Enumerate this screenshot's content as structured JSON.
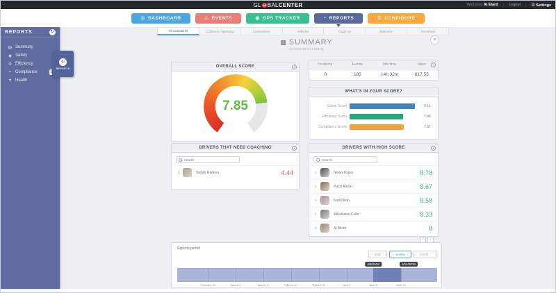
{
  "topbar": {
    "logo": {
      "part1": "GL",
      "part2": "BAL",
      "part3": "CENTER"
    },
    "welcome": "Welcome",
    "user": "Al Elard",
    "logout": "Logout",
    "settings": "Settings"
  },
  "nav": {
    "items": [
      {
        "label": "DASHBOARD",
        "icon": "dashboard-icon",
        "glyph": "◎",
        "color": "#4aa7e0",
        "active": false
      },
      {
        "label": "EVENTS",
        "icon": "warning-icon",
        "glyph": "⚠",
        "color": "#e87e76",
        "active": false
      },
      {
        "label": "GPS TRACKER",
        "icon": "location-pin-icon",
        "glyph": "◉",
        "color": "#38c08f",
        "active": false
      },
      {
        "label": "REPORTS",
        "icon": "report-chart-icon",
        "glyph": "◔",
        "color": "#5a689c",
        "active": true
      },
      {
        "label": "CONFIGURE",
        "icon": "wrench-icon",
        "glyph": "⚙",
        "color": "#f8a93e",
        "active": false
      }
    ]
  },
  "sidebar": {
    "title": "REPORTS",
    "toggle_glyph": "↻",
    "items": [
      {
        "label": "Summary",
        "icon": "summary-chart-icon",
        "glyph": "▤",
        "pinned": false
      },
      {
        "label": "Safety",
        "icon": "shield-icon",
        "glyph": "◆",
        "pinned": false
      },
      {
        "label": "Efficiency",
        "icon": "gear-icon",
        "glyph": "⚙",
        "pinned": false
      },
      {
        "label": "Compliance",
        "icon": "wave-icon",
        "glyph": "≈",
        "pinned": true
      },
      {
        "label": "Health",
        "icon": "heart-icon",
        "glyph": "♥",
        "pinned": false
      }
    ],
    "flyout": {
      "label": "REPORTS",
      "glyph": "↻"
    }
  },
  "tabs": [
    "All complaints",
    "Collisions, Speeding",
    "Connections",
    "Vehicles",
    "Trade Up",
    "Business",
    "Timesheet"
  ],
  "menu_button_glyph": "≡",
  "summary": {
    "title": "SUMMARY",
    "icon_glyph": "▦",
    "date_range": "(04/08/2018-04/14/2018)"
  },
  "overall": {
    "title": "OVERALL SCORE",
    "value": "7.85"
  },
  "metrics": {
    "headers": [
      "Incidents",
      "Events",
      "Idle time",
      "Miles"
    ],
    "values": [
      "0",
      "185",
      "14h 32m",
      "817.55"
    ]
  },
  "score_breakdown": {
    "title": "WHAT'S IN YOUR SCORE?",
    "max": 10,
    "bars": [
      {
        "label": "Safety Score",
        "value": 9.11,
        "display": "9.11",
        "color": "#3f86bf"
      },
      {
        "label": "Efficiency Score",
        "value": 7.46,
        "display": "7.46",
        "color": "#29a87e"
      },
      {
        "label": "Compliance Score",
        "value": 7.57,
        "display": "7.57",
        "color": "#f2a23b"
      }
    ]
  },
  "coaching": {
    "title": "DRIVERS THAT NEED COACHING",
    "search_placeholder": "Search",
    "rows": [
      {
        "rank": "1",
        "name": "Stefan Radevu",
        "score": "4.44",
        "avatar_color": "#a9a18c"
      }
    ]
  },
  "high_score": {
    "title": "DRIVERS WITH HIGH SCORE",
    "search_placeholder": "Search",
    "rows": [
      {
        "rank": "1",
        "name": "Nolan Ryass",
        "score": "8.78",
        "avatar_color": "#4a4a52"
      },
      {
        "rank": "2",
        "name": "Pavlo Resel",
        "score": "8.67",
        "avatar_color": "#8c6b52"
      },
      {
        "rank": "3",
        "name": "Karli Dilan",
        "score": "8.58",
        "avatar_color": "#b08f9a"
      },
      {
        "rank": "4",
        "name": "Mihaleswa Celin",
        "score": "8.33",
        "avatar_color": "#707a86"
      },
      {
        "rank": "5",
        "name": "Al Bilotti",
        "score": "8",
        "avatar_color": "#9a8468"
      }
    ],
    "pager": [
      "‹",
      "›"
    ]
  },
  "reports_period": {
    "label": "Reports period",
    "buttons": [
      {
        "label": "daily",
        "active": false
      },
      {
        "label": "weekly",
        "active": true
      },
      {
        "label": "month...",
        "active": false
      }
    ],
    "tooltips": [
      "4/8/2018",
      "4/14/2018"
    ],
    "tooltip_positions_pct": [
      75.4,
      89.0
    ],
    "axis_labels": [
      "February 25",
      "March 4",
      "March 11",
      "March 18",
      "March 25",
      "April 1",
      "April 8",
      "April 15"
    ],
    "axis_positions_pct": [
      11.8,
      22.5,
      33.2,
      43.9,
      54.6,
      65.3,
      75.4,
      86.1
    ],
    "selection_pct": {
      "start": 75.4,
      "end": 86.1
    },
    "colors": {
      "band": "#aab4d8",
      "selection": "#7081b6"
    }
  }
}
